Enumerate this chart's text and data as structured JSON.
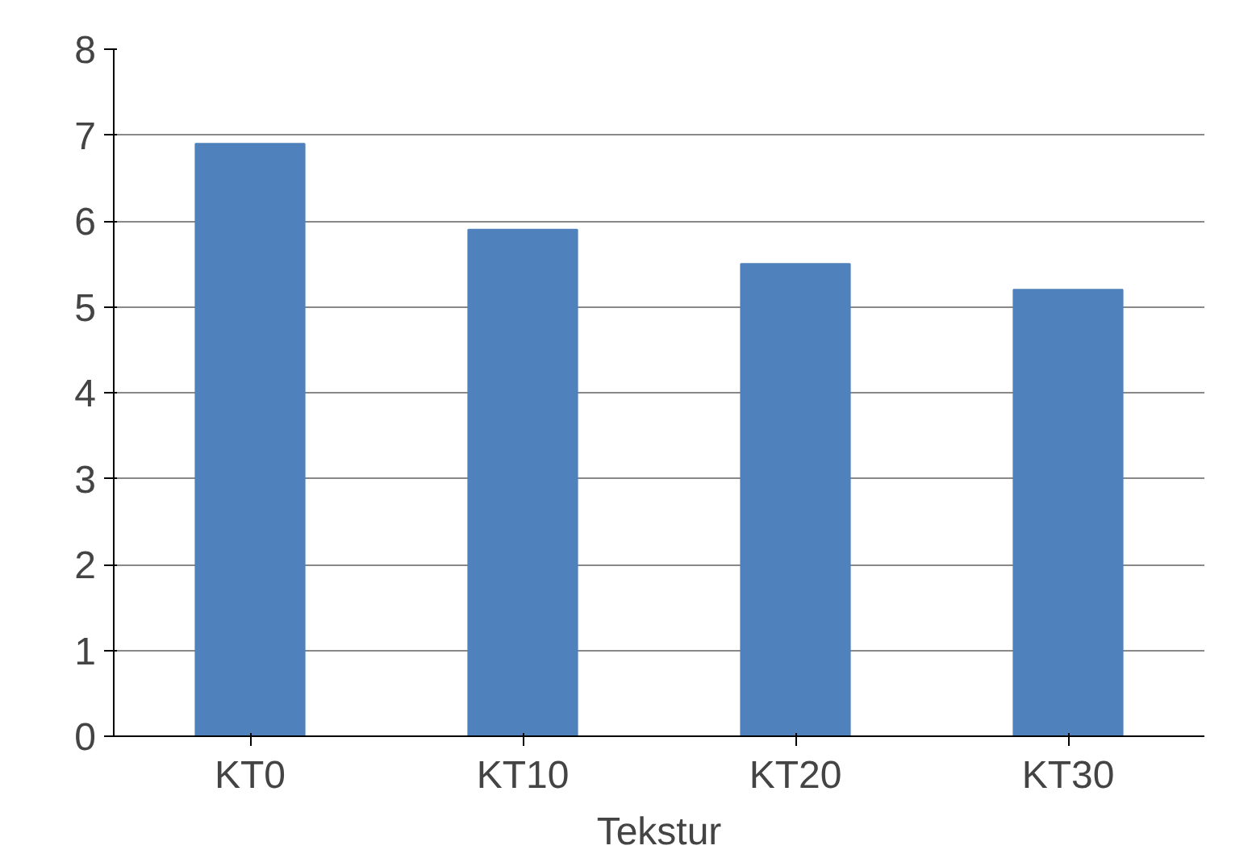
{
  "chart_data": {
    "type": "bar",
    "xlabel": "Tekstur",
    "categories": [
      "KT0",
      "KT10",
      "KT20",
      "KT30"
    ],
    "values": [
      6.9,
      5.9,
      5.5,
      5.2
    ],
    "color": "#4f81bd",
    "ylim": [
      0,
      8
    ],
    "yticks": [
      0,
      1,
      2,
      3,
      4,
      5,
      6,
      7,
      8
    ],
    "grid": "y"
  }
}
